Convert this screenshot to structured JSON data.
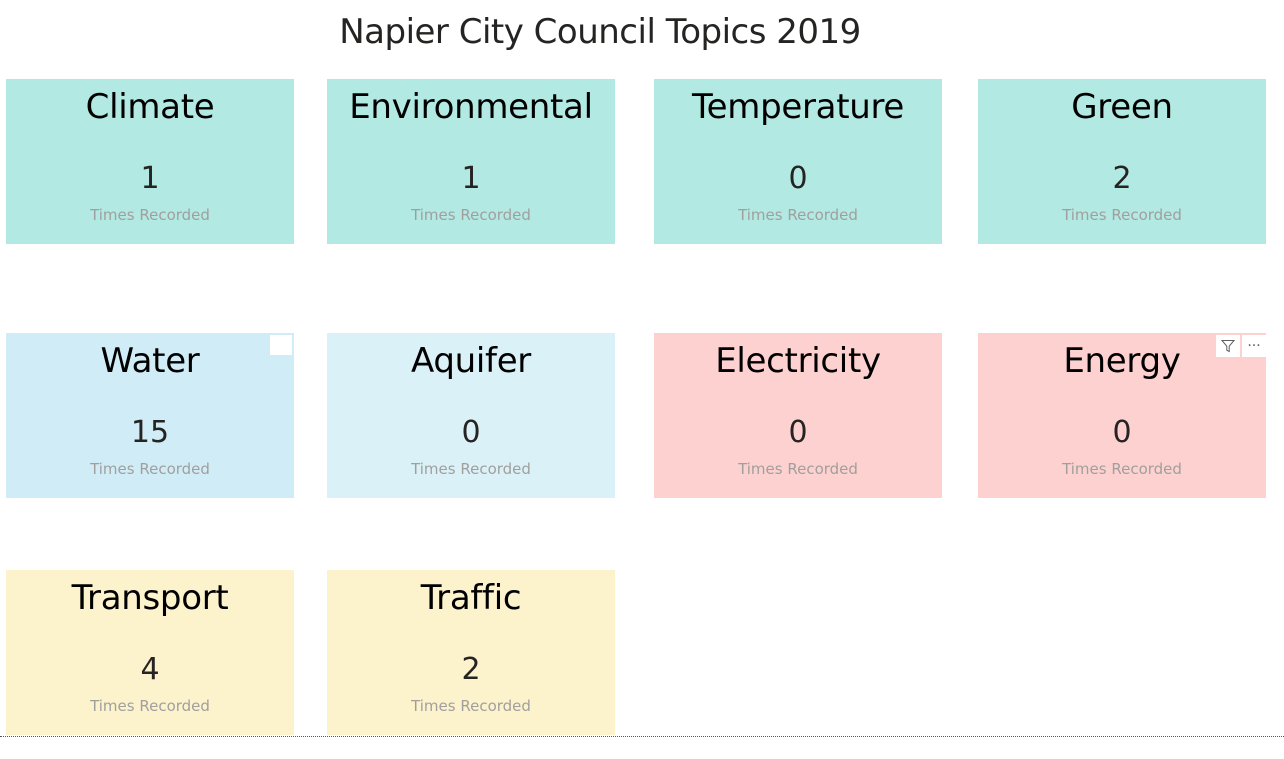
{
  "report": {
    "title": "Napier City Council Topics 2019"
  },
  "colors": {
    "teal": "#b2e9e3",
    "blue_dark": "#d0edf7",
    "blue_light": "#dbf1f8",
    "pink": "#fdd1cf",
    "yellow": "#fcf2cc"
  },
  "cards": [
    {
      "title": "Climate",
      "value": "1",
      "caption": "Times Recorded",
      "color": "#b2e9e3"
    },
    {
      "title": "Environmental",
      "value": "1",
      "caption": "Times Recorded",
      "color": "#b2e9e3"
    },
    {
      "title": "Temperature",
      "value": "0",
      "caption": "Times Recorded",
      "color": "#b2e9e3"
    },
    {
      "title": "Green",
      "value": "2",
      "caption": "Times Recorded",
      "color": "#b2e9e3"
    },
    {
      "title": "Water",
      "value": "15",
      "caption": "Times Recorded",
      "color": "#d0edf7"
    },
    {
      "title": "Aquifer",
      "value": "0",
      "caption": "Times Recorded",
      "color": "#dbf1f8"
    },
    {
      "title": "Electricity",
      "value": "0",
      "caption": "Times Recorded",
      "color": "#fdd1cf"
    },
    {
      "title": "Energy",
      "value": "0",
      "caption": "Times Recorded",
      "color": "#fdd1cf"
    },
    {
      "title": "Transport",
      "value": "4",
      "caption": "Times Recorded",
      "color": "#fcf2cc"
    },
    {
      "title": "Traffic",
      "value": "2",
      "caption": "Times Recorded",
      "color": "#fcf2cc"
    }
  ],
  "visual_header": {
    "filter_icon": "filter-icon",
    "more_icon": "more-options-icon",
    "more_glyph": "···",
    "filter_glyph": "⏷"
  }
}
